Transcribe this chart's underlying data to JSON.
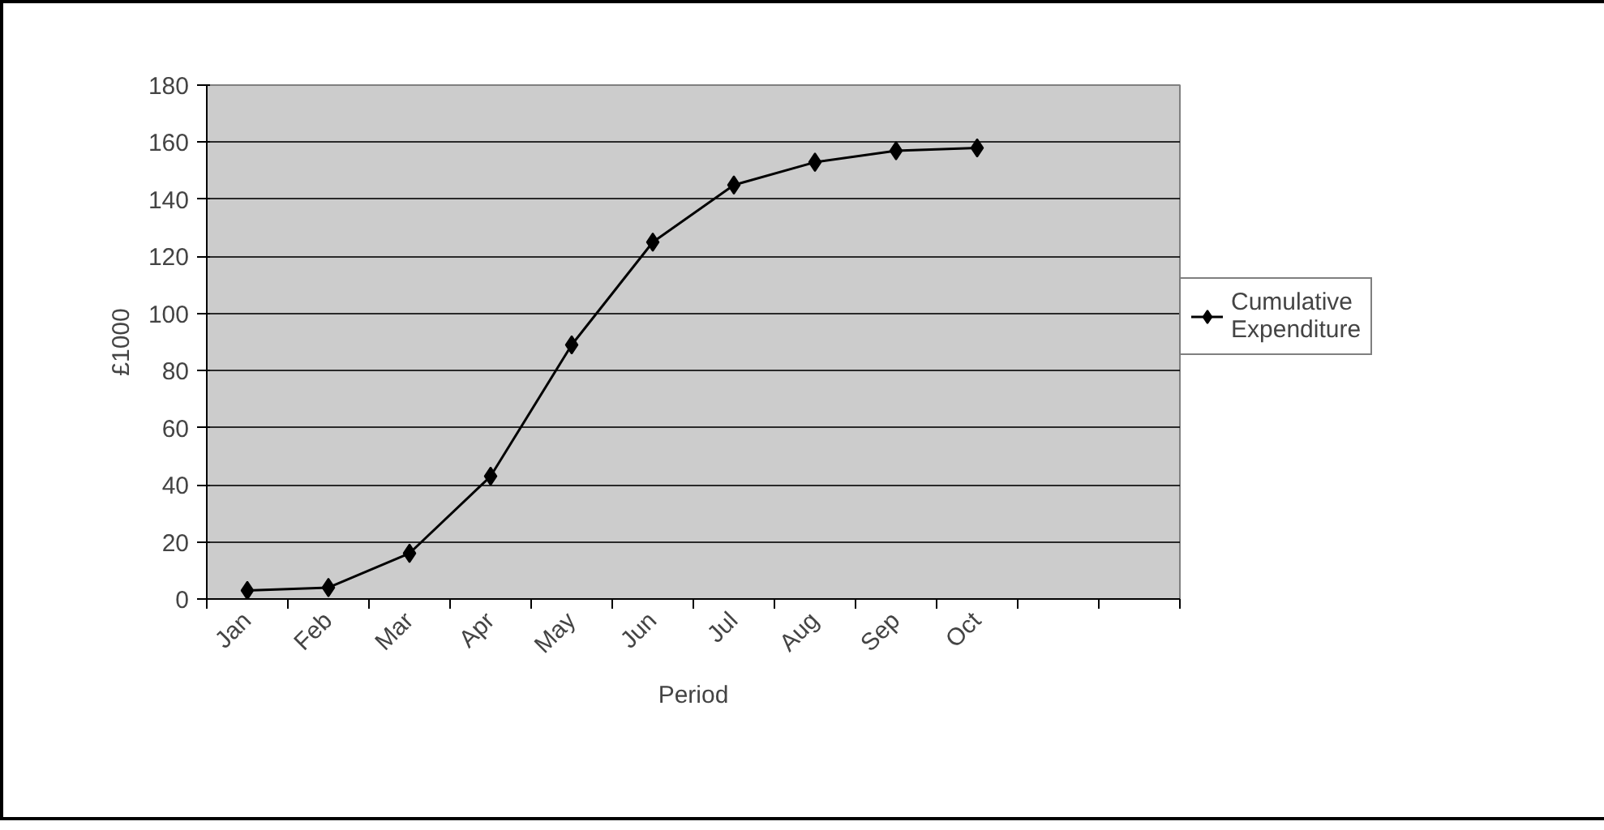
{
  "chart_data": {
    "type": "line",
    "xlabel": "Period",
    "ylabel": "£1000",
    "categories": [
      "Jan",
      "Feb",
      "Mar",
      "Apr",
      "May",
      "Jun",
      "Jul",
      "Aug",
      "Sep",
      "Oct",
      null,
      null
    ],
    "series": [
      {
        "name": "Cumulative Expenditure",
        "color": "#000000",
        "values": [
          3,
          4,
          16,
          43,
          89,
          125,
          145,
          153,
          157,
          158,
          null,
          null
        ]
      }
    ],
    "ylim": [
      0,
      180
    ],
    "yticks": [
      0,
      20,
      40,
      60,
      80,
      100,
      120,
      140,
      160,
      180
    ],
    "grid": "y",
    "legend": "right",
    "marker": "diamond",
    "line_style": "solid"
  }
}
